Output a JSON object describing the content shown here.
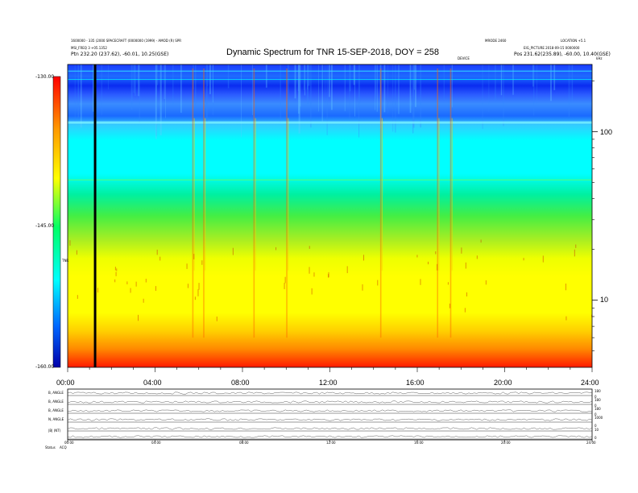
{
  "header": {
    "title": "Dynamic Spectrum for TNR 15-SEP-2018, DOY = 258",
    "left_line1": "1600000 - 335 (2000 SPACECRAFT (0000000 (1999) - AMOD (R) SPR",
    "left_line2": "MSI_FREQ 3 +05.1352",
    "left_line3": "Ptn     232.20 (237.62), -60.01, 10.25(GSE)",
    "right_line1": "MRODE 2460",
    "right_line2": "LOCATION +5.1",
    "right_line3": "EIG_PICTURE  2018-09-15  0000000",
    "right_line4": "Pos     231.62(235.89), -60.00, 10.40(GSE)",
    "marker_label": "DEVICE",
    "corner_label": "kHz"
  },
  "colorbar": {
    "ticks": [
      "-130.00",
      "-145.00",
      "-160.00"
    ],
    "label": "TNR",
    "colors": [
      "#ff0000",
      "#ff9900",
      "#ffff00",
      "#00ff66",
      "#00ffff",
      "#0066ff",
      "#0000aa"
    ]
  },
  "chart_data": {
    "type": "heatmap",
    "title": "Dynamic Spectrum for TNR 15-SEP-2018, DOY = 258",
    "x_label": "",
    "y_label": "",
    "x_range_hours": [
      0,
      24
    ],
    "x_ticks": [
      "00:00",
      "04:00",
      "08:00",
      "12:00",
      "16:00",
      "20:00",
      "24:00"
    ],
    "y_scale": "log",
    "y_range_khz": [
      4,
      250
    ],
    "y_ticks": [
      {
        "value": 100,
        "label": "100"
      },
      {
        "value": 10,
        "label": "10"
      }
    ],
    "colorbar_range": [
      -160,
      -130
    ],
    "data_gap_hour": 1.2,
    "bands": [
      {
        "from_khz": 200,
        "to_khz": 250,
        "level": "blue"
      },
      {
        "from_khz": 120,
        "to_khz": 200,
        "level": "blue-cyan"
      },
      {
        "from_khz": 50,
        "to_khz": 120,
        "level": "cyan"
      },
      {
        "from_khz": 30,
        "to_khz": 50,
        "level": "green"
      },
      {
        "from_khz": 10,
        "to_khz": 30,
        "level": "yellow"
      },
      {
        "from_khz": 4,
        "to_khz": 6,
        "level": "red"
      }
    ],
    "bursts_hours": [
      5.7,
      6.2,
      8.5,
      10,
      14.3,
      16.9,
      17.5
    ]
  },
  "bottom_panel": {
    "row_labels": [
      "B, ANGLE",
      "B, ANGLE",
      "B, ANGLE",
      "N, ANGLE",
      "|B| (NT)"
    ],
    "right_labels": [
      "180",
      "0",
      "180",
      "0",
      "180",
      "0",
      "1000",
      "0",
      "10",
      "0"
    ],
    "x_ticks": [
      "00:00",
      "04:00",
      "08:00",
      "12:00",
      "16:00",
      "20:00",
      "24:00"
    ],
    "footer_left": "Status",
    "footer_left2": "ACQ"
  }
}
